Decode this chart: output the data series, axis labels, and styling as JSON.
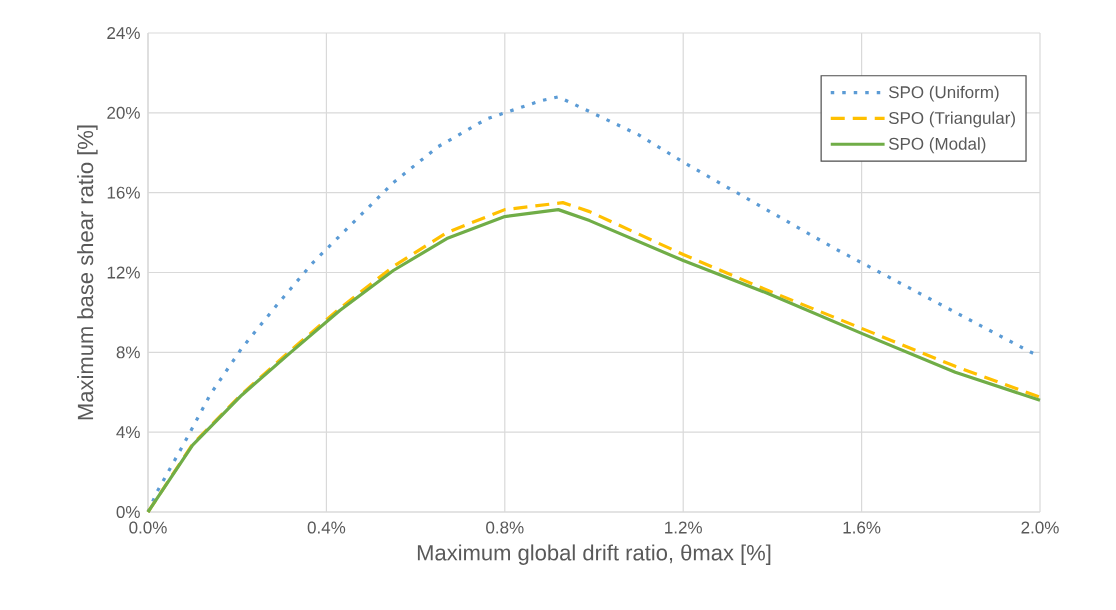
{
  "chart_data": {
    "type": "line",
    "xlabel": "Maximum global drift ratio, θmax [%]",
    "ylabel": "Maximum base shear ratio [%]",
    "xlim": [
      0,
      2.0
    ],
    "ylim": [
      0,
      24
    ],
    "xticks": [
      {
        "value": 0,
        "label": "0.0%"
      },
      {
        "value": 0.4,
        "label": "0.4%"
      },
      {
        "value": 0.8,
        "label": "0.8%"
      },
      {
        "value": 1.2,
        "label": "1.2%"
      },
      {
        "value": 1.6,
        "label": "1.6%"
      },
      {
        "value": 2.0,
        "label": "2.0%"
      }
    ],
    "yticks": [
      {
        "value": 0,
        "label": "0%"
      },
      {
        "value": 4,
        "label": "4%"
      },
      {
        "value": 8,
        "label": "8%"
      },
      {
        "value": 12,
        "label": "12%"
      },
      {
        "value": 16,
        "label": "16%"
      },
      {
        "value": 20,
        "label": "20%"
      },
      {
        "value": 24,
        "label": "24%"
      }
    ],
    "grid": true,
    "legend": "top right",
    "series": [
      {
        "name": "SPO (Uniform)",
        "color": "#5b9bd5",
        "line_style": "dotted",
        "x": [
          0,
          0.02,
          0.08,
          0.14,
          0.21,
          0.29,
          0.37,
          0.46,
          0.55,
          0.65,
          0.76,
          0.88,
          0.92,
          1.1,
          1.21,
          1.32,
          1.43,
          1.54,
          1.65,
          1.76,
          1.87,
          1.98,
          2.0
        ],
        "values": [
          0,
          1.0,
          3.4,
          5.9,
          8.2,
          10.4,
          12.5,
          14.5,
          16.5,
          18.3,
          19.7,
          20.6,
          20.8,
          18.9,
          17.4,
          16.0,
          14.6,
          13.2,
          11.9,
          10.6,
          9.3,
          8.0,
          7.8
        ]
      },
      {
        "name": "SPO (Triangular)",
        "color": "#ffc000",
        "line_style": "dashed",
        "x": [
          0,
          0.1,
          0.21,
          0.32,
          0.43,
          0.55,
          0.67,
          0.8,
          0.93,
          0.99,
          1.2,
          1.39,
          1.6,
          1.81,
          2.0
        ],
        "values": [
          0,
          3.4,
          5.9,
          8.1,
          10.2,
          12.3,
          14.0,
          15.15,
          15.5,
          15.05,
          12.9,
          11.1,
          9.2,
          7.3,
          5.75
        ]
      },
      {
        "name": "SPO (Modal)",
        "color": "#70ad47",
        "line_style": "solid",
        "x": [
          0,
          0.1,
          0.21,
          0.32,
          0.43,
          0.55,
          0.67,
          0.8,
          0.92,
          0.99,
          1.2,
          1.39,
          1.6,
          1.81,
          2.0
        ],
        "values": [
          0,
          3.35,
          5.85,
          8.0,
          10.1,
          12.1,
          13.7,
          14.8,
          15.15,
          14.6,
          12.6,
          10.95,
          8.95,
          7.0,
          5.6
        ]
      }
    ]
  }
}
